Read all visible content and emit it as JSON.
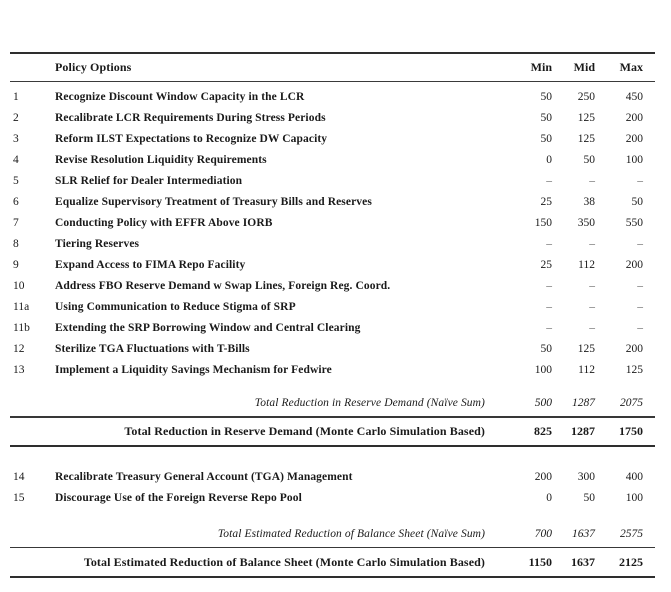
{
  "table": {
    "headers": {
      "policy": "Policy Options",
      "min": "Min",
      "mid": "Mid",
      "max": "Max"
    },
    "rows1": [
      {
        "id": "1",
        "label": "Recognize Discount Window Capacity in the LCR",
        "min": "50",
        "mid": "250",
        "max": "450"
      },
      {
        "id": "2",
        "label": "Recalibrate LCR Requirements During Stress Periods",
        "min": "50",
        "mid": "125",
        "max": "200"
      },
      {
        "id": "3",
        "label": "Reform ILST Expectations to Recognize DW Capacity",
        "min": "50",
        "mid": "125",
        "max": "200"
      },
      {
        "id": "4",
        "label": "Revise Resolution Liquidity Requirements",
        "min": "0",
        "mid": "50",
        "max": "100"
      },
      {
        "id": "5",
        "label": "SLR Relief for Dealer Intermediation",
        "min": "–",
        "mid": "–",
        "max": "–"
      },
      {
        "id": "6",
        "label": "Equalize Supervisory Treatment of Treasury Bills and Reserves",
        "min": "25",
        "mid": "38",
        "max": "50"
      },
      {
        "id": "7",
        "label": "Conducting Policy with EFFR Above IORB",
        "min": "150",
        "mid": "350",
        "max": "550"
      },
      {
        "id": "8",
        "label": "Tiering Reserves",
        "min": "–",
        "mid": "–",
        "max": "–"
      },
      {
        "id": "9",
        "label": "Expand Access to FIMA Repo Facility",
        "min": "25",
        "mid": "112",
        "max": "200"
      },
      {
        "id": "10",
        "label": "Address FBO Reserve Demand w Swap Lines, Foreign Reg. Coord.",
        "min": "–",
        "mid": "–",
        "max": "–"
      },
      {
        "id": "11a",
        "label": "Using Communication to Reduce Stigma of SRP",
        "min": "–",
        "mid": "–",
        "max": "–"
      },
      {
        "id": "11b",
        "label": "Extending the SRP Borrowing Window and Central Clearing",
        "min": "–",
        "mid": "–",
        "max": "–"
      },
      {
        "id": "12",
        "label": "Sterilize TGA Fluctuations with T-Bills",
        "min": "50",
        "mid": "125",
        "max": "200"
      },
      {
        "id": "13",
        "label": "Implement a Liquidity Savings Mechanism for Fedwire",
        "min": "100",
        "mid": "112",
        "max": "125"
      }
    ],
    "naive_total_1": {
      "label": "Total Reduction in Reserve Demand (Naïve Sum)",
      "min": "500",
      "mid": "1287",
      "max": "2075"
    },
    "mc_total_1": {
      "label": "Total Reduction in Reserve Demand (Monte Carlo Simulation Based)",
      "min": "825",
      "mid": "1287",
      "max": "1750"
    },
    "rows2": [
      {
        "id": "14",
        "label": "Recalibrate Treasury General Account (TGA) Management",
        "min": "200",
        "mid": "300",
        "max": "400"
      },
      {
        "id": "15",
        "label": "Discourage Use of the Foreign Reverse Repo Pool",
        "min": "0",
        "mid": "50",
        "max": "100"
      }
    ],
    "naive_total_2": {
      "label": "Total Estimated Reduction of Balance Sheet (Naïve Sum)",
      "min": "700",
      "mid": "1637",
      "max": "2575"
    },
    "mc_total_2": {
      "label": "Total Estimated Reduction of Balance Sheet (Monte Carlo Simulation Based)",
      "min": "1150",
      "mid": "1637",
      "max": "2125"
    }
  },
  "colors": {
    "text": "#1a1a1a",
    "rule": "#2e2e2e",
    "dash": "#5a5a5a",
    "background": "#ffffff"
  }
}
